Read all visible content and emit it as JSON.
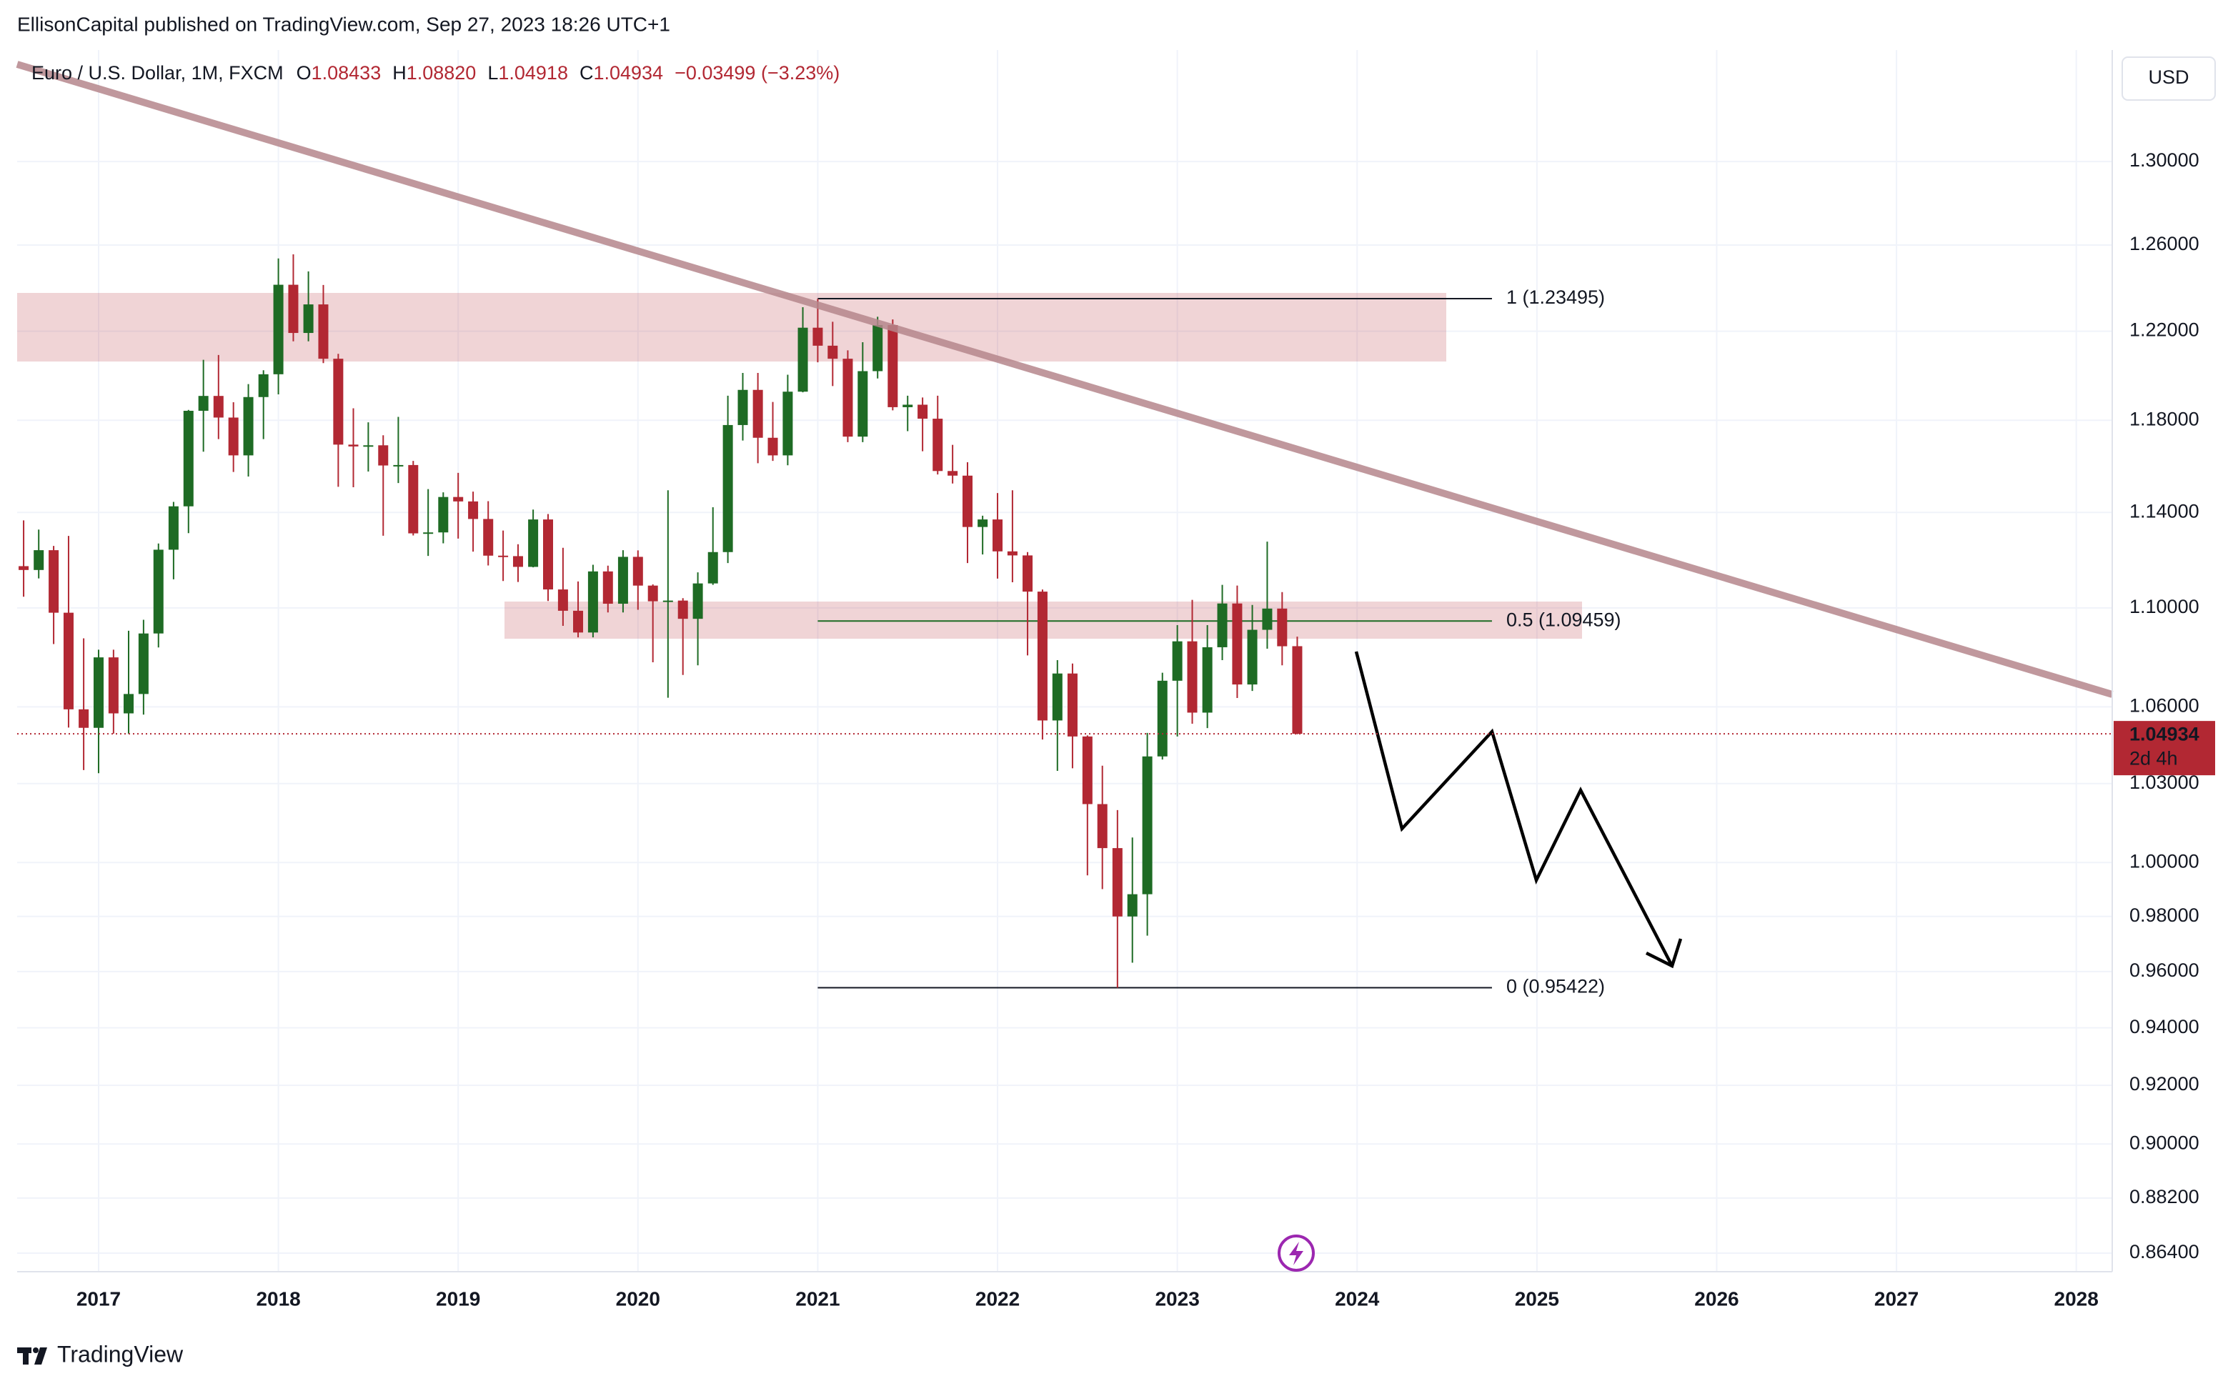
{
  "page": {
    "attribution": "EllisonCapital published on TradingView.com, Sep 27, 2023 18:26 UTC+1",
    "currency": "USD",
    "brand": "TradingView"
  },
  "chart_data": {
    "type": "candlestick",
    "title": "Euro / U.S. Dollar, 1M, FXCM",
    "ohlc_legend": [
      {
        "key": "O",
        "value": "1.08433"
      },
      {
        "key": "H",
        "value": "1.08820"
      },
      {
        "key": "L",
        "value": "1.04918"
      },
      {
        "key": "C",
        "value": "1.04934"
      }
    ],
    "change": "−0.03499 (−3.23%)",
    "last_price_label": "1.04934",
    "countdown": "2d 4h",
    "up_color": "#1e6b24",
    "down_color": "#b22833",
    "log_scale": true,
    "grid": true,
    "x": [
      2016.583,
      2016.667,
      2016.75,
      2016.833,
      2016.917,
      2017,
      2017.083,
      2017.167,
      2017.25,
      2017.333,
      2017.417,
      2017.5,
      2017.583,
      2017.667,
      2017.75,
      2017.833,
      2017.917,
      2018,
      2018.083,
      2018.167,
      2018.25,
      2018.333,
      2018.417,
      2018.5,
      2018.583,
      2018.667,
      2018.75,
      2018.833,
      2018.917,
      2019,
      2019.083,
      2019.167,
      2019.25,
      2019.333,
      2019.417,
      2019.5,
      2019.583,
      2019.667,
      2019.75,
      2019.833,
      2019.917,
      2020,
      2020.083,
      2020.167,
      2020.25,
      2020.333,
      2020.417,
      2020.5,
      2020.583,
      2020.667,
      2020.75,
      2020.833,
      2020.917,
      2021,
      2021.083,
      2021.167,
      2021.25,
      2021.333,
      2021.417,
      2021.5,
      2021.583,
      2021.667,
      2021.75,
      2021.833,
      2021.917,
      2022,
      2022.083,
      2022.167,
      2022.25,
      2022.333,
      2022.417,
      2022.5,
      2022.583,
      2022.667,
      2022.75,
      2022.833,
      2022.917,
      2023,
      2023.083,
      2023.167,
      2023.25,
      2023.333,
      2023.417,
      2023.5,
      2023.583,
      2023.667
    ],
    "open": [
      1.1173,
      1.1157,
      1.124,
      1.098,
      1.059,
      1.0517,
      1.0798,
      1.0574,
      1.0651,
      1.0895,
      1.1242,
      1.1426,
      1.1842,
      1.1908,
      1.1812,
      1.1646,
      1.1903,
      1.2005,
      1.2414,
      1.2192,
      1.2323,
      1.2075,
      1.1693,
      1.1685,
      1.169,
      1.1602,
      1.1604,
      1.1311,
      1.1315,
      1.1466,
      1.1447,
      1.1372,
      1.1217,
      1.1215,
      1.117,
      1.137,
      1.1076,
      1.0988,
      1.0899,
      1.1151,
      1.1017,
      1.1212,
      1.1092,
      1.1027,
      1.103,
      1.0955,
      1.1101,
      1.1232,
      1.1779,
      1.1935,
      1.1723,
      1.1646,
      1.1927,
      1.2216,
      1.2134,
      1.2075,
      1.1728,
      1.2019,
      1.2228,
      1.1858,
      1.1869,
      1.1807,
      1.1578,
      1.1558,
      1.1338,
      1.137,
      1.1235,
      1.1218,
      1.1067,
      1.0546,
      1.0733,
      1.0483,
      1.0221,
      1.0054,
      0.98,
      0.9882,
      1.0405,
      1.0704,
      1.0863,
      1.0577,
      1.0839,
      1.1018,
      1.0689,
      1.091,
      1.0997,
      1.08433
    ],
    "high": [
      1.1366,
      1.1327,
      1.1258,
      1.13,
      1.0875,
      1.0829,
      1.0829,
      1.0906,
      1.0951,
      1.1268,
      1.1445,
      1.1846,
      1.207,
      1.2092,
      1.188,
      1.1961,
      1.2023,
      1.2537,
      1.2556,
      1.2476,
      1.2413,
      1.2097,
      1.1853,
      1.1791,
      1.1734,
      1.1815,
      1.1622,
      1.15,
      1.1486,
      1.157,
      1.1489,
      1.1448,
      1.1323,
      1.1265,
      1.1412,
      1.1393,
      1.125,
      1.1109,
      1.1179,
      1.1175,
      1.124,
      1.1239,
      1.1097,
      1.1495,
      1.104,
      1.1147,
      1.1422,
      1.1909,
      1.2011,
      1.2011,
      1.1881,
      1.2003,
      1.231,
      1.2349,
      1.2243,
      1.2113,
      1.215,
      1.2266,
      1.2254,
      1.1909,
      1.1901,
      1.1909,
      1.1692,
      1.1616,
      1.1386,
      1.1483,
      1.1495,
      1.1232,
      1.1076,
      1.0787,
      1.0773,
      1.0487,
      1.0369,
      1.0198,
      1.0094,
      1.0497,
      1.0736,
      1.0929,
      1.1033,
      1.0929,
      1.1095,
      1.1092,
      1.1012,
      1.1276,
      1.1065,
      1.0882
    ],
    "low": [
      1.1046,
      1.1122,
      1.0852,
      1.0518,
      1.0352,
      1.034,
      1.0494,
      1.0494,
      1.0569,
      1.0838,
      1.1118,
      1.1312,
      1.1662,
      1.1717,
      1.1574,
      1.1554,
      1.1717,
      1.1915,
      1.2154,
      1.2154,
      1.2055,
      1.151,
      1.1508,
      1.1576,
      1.1301,
      1.1526,
      1.1302,
      1.1216,
      1.1269,
      1.1289,
      1.1234,
      1.1176,
      1.1111,
      1.1107,
      1.1168,
      1.1028,
      1.0926,
      1.0879,
      1.0879,
      1.0981,
      1.0981,
      1.0992,
      1.0778,
      1.0636,
      1.0727,
      1.0766,
      1.1095,
      1.1186,
      1.1711,
      1.1612,
      1.1622,
      1.1603,
      1.1924,
      1.2059,
      1.1952,
      1.1704,
      1.1704,
      1.1986,
      1.1844,
      1.1752,
      1.1664,
      1.1563,
      1.1524,
      1.1186,
      1.1222,
      1.1121,
      1.1106,
      1.0806,
      1.0471,
      1.0349,
      1.0359,
      0.9952,
      0.9901,
      0.9542,
      0.9632,
      0.973,
      1.0393,
      1.0483,
      1.0533,
      1.0516,
      1.0787,
      1.0635,
      1.0663,
      1.0833,
      1.0766,
      1.04918
    ],
    "close": [
      1.1157,
      1.124,
      1.098,
      1.059,
      1.0517,
      1.0798,
      1.0574,
      1.0651,
      1.0895,
      1.1242,
      1.1426,
      1.1842,
      1.1908,
      1.1812,
      1.1646,
      1.1903,
      1.2005,
      1.2414,
      1.2192,
      1.2323,
      1.2075,
      1.1693,
      1.1685,
      1.169,
      1.1602,
      1.1604,
      1.1311,
      1.1315,
      1.1466,
      1.1447,
      1.1372,
      1.1217,
      1.1215,
      1.117,
      1.137,
      1.1076,
      1.0988,
      1.0899,
      1.1151,
      1.1017,
      1.1212,
      1.1092,
      1.1027,
      1.103,
      1.0955,
      1.1101,
      1.1232,
      1.1779,
      1.1935,
      1.1723,
      1.1646,
      1.1927,
      1.2216,
      1.2134,
      1.2075,
      1.1728,
      1.2019,
      1.2228,
      1.1858,
      1.1869,
      1.1807,
      1.1578,
      1.1558,
      1.1338,
      1.137,
      1.1235,
      1.1218,
      1.1067,
      1.0546,
      1.0733,
      1.0483,
      1.0221,
      1.0054,
      0.98,
      0.9882,
      1.0405,
      1.0704,
      1.0863,
      1.0577,
      1.0839,
      1.1018,
      1.0689,
      1.091,
      1.0997,
      1.0843,
      1.04934
    ],
    "fib_levels": [
      {
        "label": "1 (1.23495)",
        "value": 1.23495,
        "color": "#131722"
      },
      {
        "label": "0.5 (1.09459)",
        "value": 1.09459,
        "color": "#1e6b24"
      },
      {
        "label": "0 (0.95422)",
        "value": 0.95422,
        "color": "#131722"
      }
    ],
    "xlim": [
      2016.547,
      2028.2
    ],
    "xticks": [
      2017,
      2018,
      2019,
      2020,
      2021,
      2022,
      2023,
      2024,
      2025,
      2026,
      2027,
      2028
    ],
    "ylim": [
      0.858,
      1.3554
    ],
    "yticks": [
      {
        "value": 1.3,
        "label": "1.30000"
      },
      {
        "value": 1.26,
        "label": "1.26000"
      },
      {
        "value": 1.22,
        "label": "1.22000"
      },
      {
        "value": 1.18,
        "label": "1.18000"
      },
      {
        "value": 1.14,
        "label": "1.14000"
      },
      {
        "value": 1.1,
        "label": "1.10000"
      },
      {
        "value": 1.06,
        "label": "1.06000"
      },
      {
        "value": 1.03,
        "label": "1.03000"
      },
      {
        "value": 1,
        "label": "1.00000"
      },
      {
        "value": 0.98,
        "label": "0.98000"
      },
      {
        "value": 0.96,
        "label": "0.96000"
      },
      {
        "value": 0.94,
        "label": "0.94000"
      },
      {
        "value": 0.92,
        "label": "0.92000"
      },
      {
        "value": 0.9,
        "label": "0.90000"
      },
      {
        "value": 0.882,
        "label": "0.88200"
      },
      {
        "value": 0.864,
        "label": "0.86400"
      }
    ]
  }
}
